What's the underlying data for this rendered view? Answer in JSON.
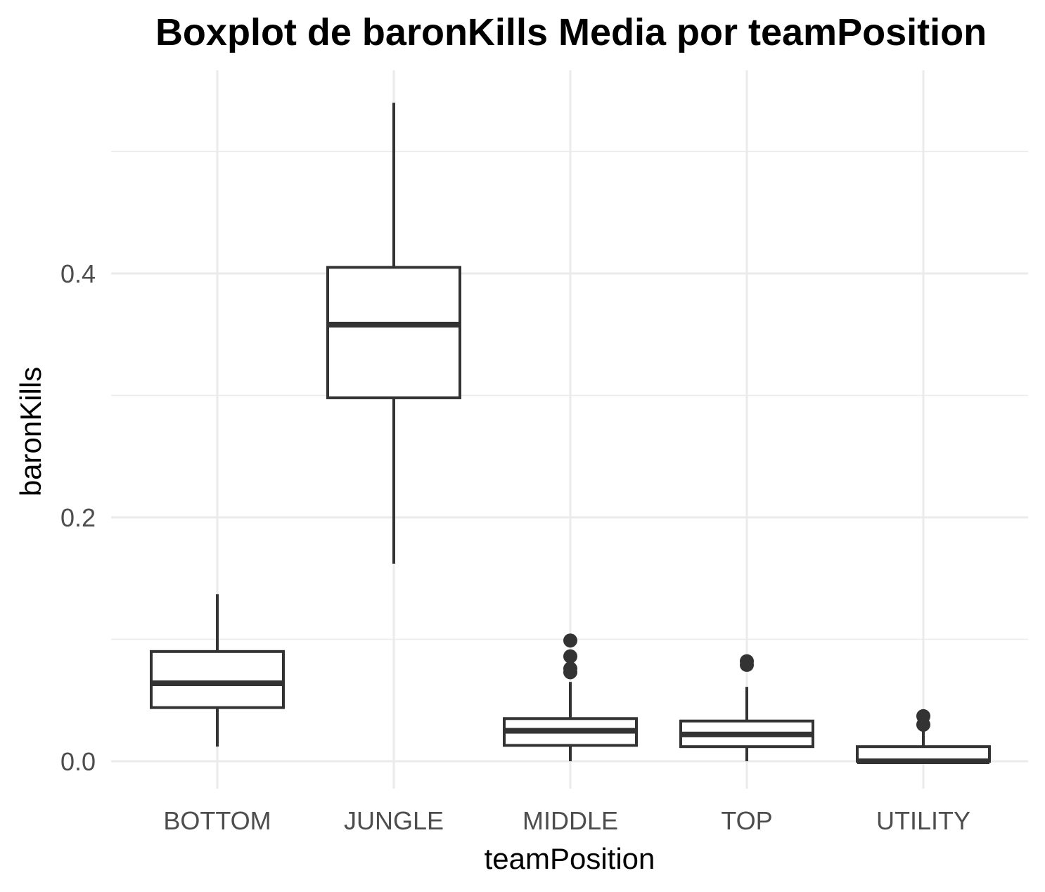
{
  "chart_data": {
    "type": "boxplot",
    "title": "Boxplot de baronKills Media por teamPosition",
    "xlabel": "teamPosition",
    "ylabel": "baronKills",
    "ylim": [
      -0.045,
      0.56
    ],
    "yticks": [
      "0.0",
      "0.2",
      "0.4"
    ],
    "ytick_values": [
      0.0,
      0.2,
      0.4
    ],
    "grid": true,
    "colors": {
      "box_stroke": "#333333",
      "box_fill": "#ffffff",
      "grid": "#ebebeb",
      "tick_text": "#4d4d4d"
    },
    "categories": [
      "BOTTOM",
      "JUNGLE",
      "MIDDLE",
      "TOP",
      "UTILITY"
    ],
    "boxes": [
      {
        "category": "BOTTOM",
        "whisker_low": 0.012,
        "q1": 0.044,
        "median": 0.064,
        "q3": 0.09,
        "whisker_high": 0.137,
        "outliers": []
      },
      {
        "category": "JUNGLE",
        "whisker_low": 0.162,
        "q1": 0.298,
        "median": 0.358,
        "q3": 0.405,
        "whisker_high": 0.54,
        "outliers": []
      },
      {
        "category": "MIDDLE",
        "whisker_low": 0.0,
        "q1": 0.013,
        "median": 0.025,
        "q3": 0.035,
        "whisker_high": 0.065,
        "outliers": [
          0.099,
          0.086,
          0.076,
          0.073
        ]
      },
      {
        "category": "TOP",
        "whisker_low": 0.0,
        "q1": 0.012,
        "median": 0.022,
        "q3": 0.033,
        "whisker_high": 0.061,
        "outliers": [
          0.082,
          0.079
        ]
      },
      {
        "category": "UTILITY",
        "whisker_low": 0.0,
        "q1": 0.0,
        "median": 0.0,
        "q3": 0.012,
        "whisker_high": 0.025,
        "outliers": [
          0.037,
          0.03
        ]
      }
    ]
  }
}
